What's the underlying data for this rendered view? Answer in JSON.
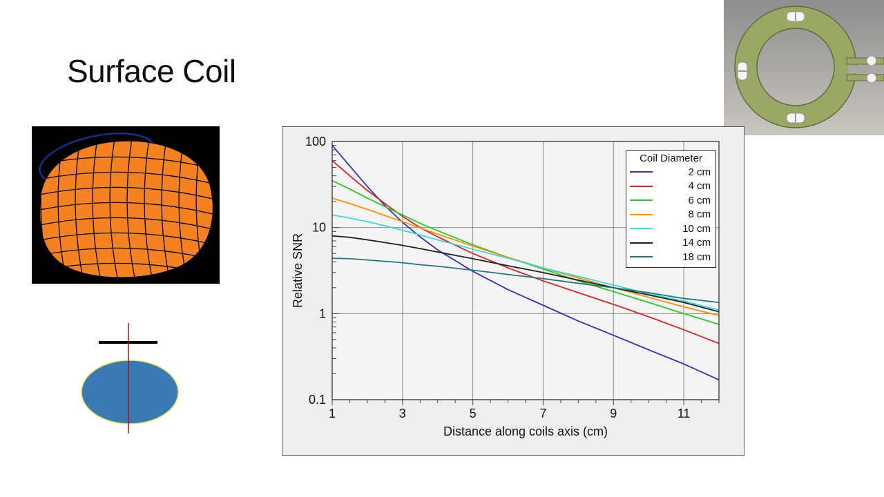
{
  "slide": {
    "title": "Surface Coil"
  },
  "chart_data": {
    "type": "line",
    "xlabel": "Distance along coils axis (cm)",
    "ylabel": "Relative SNR",
    "legend_title": "Coil Diameter",
    "xlim": [
      1,
      12
    ],
    "ylim": [
      0.1,
      100
    ],
    "yscale": "log",
    "grid": "on",
    "legend_position": "top-right",
    "xticks": [
      1,
      3,
      5,
      7,
      9,
      11
    ],
    "xtick_labels": [
      "1",
      "3",
      "5",
      "7",
      "9",
      "11"
    ],
    "yticks": [
      100,
      10,
      1,
      0.1
    ],
    "ytick_labels": [
      "100",
      "10",
      "1",
      "0.1"
    ],
    "xgrid": [
      3,
      5,
      7,
      9,
      11
    ],
    "ygrid": [
      10,
      1
    ],
    "x": [
      1,
      1.5,
      2,
      2.5,
      3,
      3.5,
      4,
      5,
      6,
      7,
      8,
      9,
      10,
      11,
      12
    ],
    "series": [
      {
        "name": "2 cm",
        "color": "#2f2fbf",
        "values": [
          90,
          52,
          30,
          18,
          11.5,
          7.8,
          5.5,
          3.1,
          1.9,
          1.25,
          0.82,
          0.56,
          0.38,
          0.26,
          0.17
        ]
      },
      {
        "name": "4 cm",
        "color": "#e02020",
        "values": [
          60,
          40,
          27,
          19,
          13.5,
          10,
          7.8,
          5.0,
          3.4,
          2.4,
          1.75,
          1.28,
          0.92,
          0.65,
          0.45
        ]
      },
      {
        "name": "6 cm",
        "color": "#28c828",
        "values": [
          35,
          28,
          22,
          17.5,
          14,
          11.2,
          9.2,
          6.3,
          4.5,
          3.3,
          2.4,
          1.8,
          1.35,
          1.0,
          0.75
        ]
      },
      {
        "name": "8 cm",
        "color": "#ff9000",
        "values": [
          22,
          19,
          16.3,
          13.8,
          11.7,
          9.9,
          8.4,
          6.1,
          4.5,
          3.4,
          2.6,
          2.0,
          1.55,
          1.2,
          0.95
        ]
      },
      {
        "name": "10 cm",
        "color": "#38d8e0",
        "values": [
          14,
          12.9,
          11.7,
          10.5,
          9.3,
          8.2,
          7.2,
          5.6,
          4.4,
          3.4,
          2.7,
          2.15,
          1.7,
          1.4,
          1.1
        ]
      },
      {
        "name": "14 cm",
        "color": "#202020",
        "values": [
          8.0,
          7.7,
          7.2,
          6.7,
          6.2,
          5.7,
          5.2,
          4.35,
          3.6,
          3.0,
          2.45,
          2.0,
          1.65,
          1.35,
          1.05
        ]
      },
      {
        "name": "18 cm",
        "color": "#1e7878",
        "values": [
          4.4,
          4.35,
          4.2,
          4.05,
          3.9,
          3.7,
          3.55,
          3.2,
          2.85,
          2.55,
          2.25,
          2.0,
          1.75,
          1.5,
          1.35
        ]
      }
    ]
  },
  "colors": {
    "panel_bg": "#eeeeee",
    "plot_bg": "#f4f4f4",
    "grid": "#8a8a8a",
    "frame": "#333333",
    "mesh_orange": "#f58220",
    "coil_ring_green": "#9ba765",
    "diagram_ellipse_blue": "#3b79b3"
  }
}
